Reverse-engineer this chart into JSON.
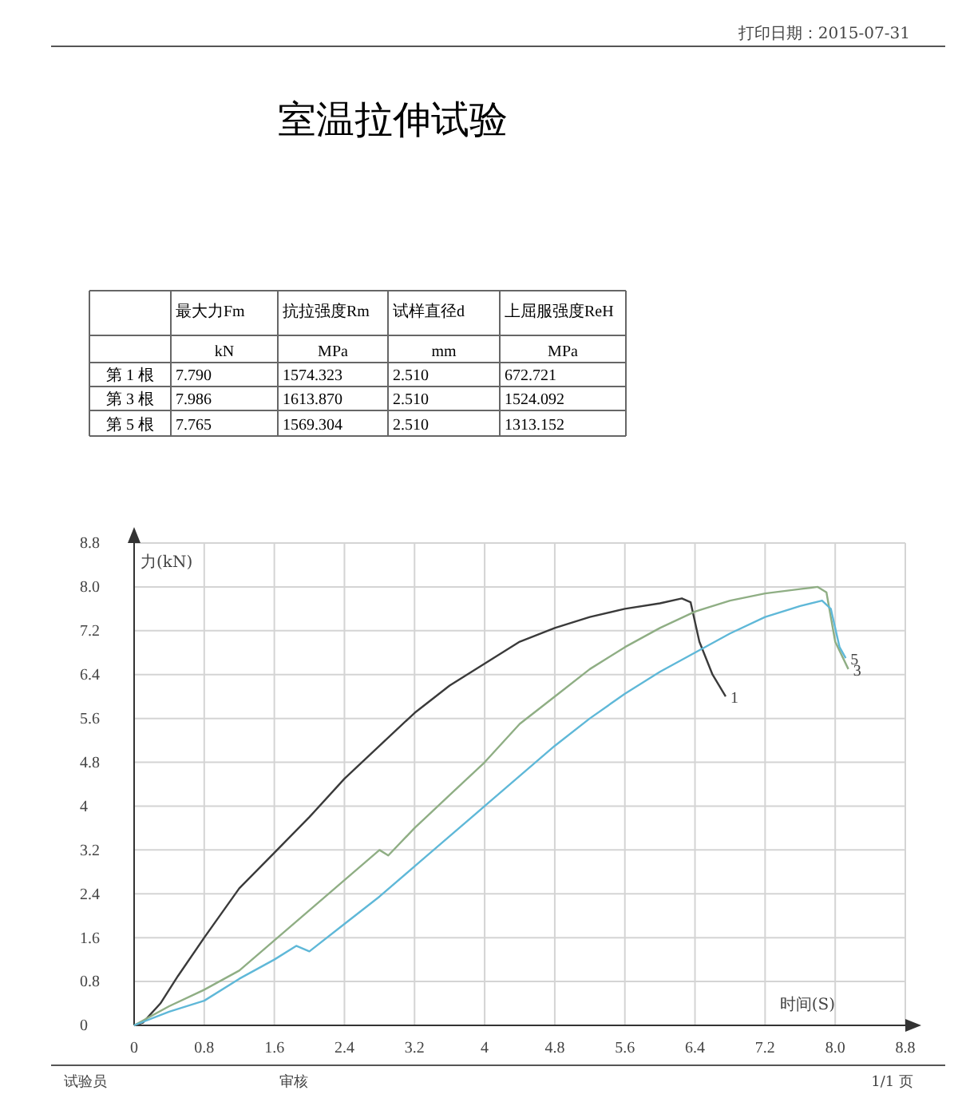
{
  "chart_data": {
    "type": "line",
    "title": "室温拉伸试验",
    "xlabel": "时间(S)",
    "ylabel": "力(kN)",
    "xlim": [
      0,
      8.8
    ],
    "ylim": [
      0,
      8.8
    ],
    "xticks": [
      0,
      0.8,
      1.6,
      2.4,
      3.2,
      4,
      4.8,
      5.6,
      6.4,
      7.2,
      {
        "value": 8,
        "label": "8.0"
      },
      8.8
    ],
    "yticks": [
      0,
      0.8,
      1.6,
      2.4,
      3.2,
      4,
      4.8,
      5.6,
      6.4,
      7.2,
      {
        "value": 8,
        "label": "8.0"
      },
      8.8
    ],
    "grid": true,
    "annotations": [
      "打印日期：2015-07-31",
      "最大力Fm",
      "抗拉强度Rm",
      "试样直径d",
      "上屈服强度ReH",
      "kN",
      "MPa",
      "mm",
      "MPa",
      "第 1 根",
      "7.790",
      "1574.323",
      "2.510",
      "672.721",
      "第 3 根",
      "7.986",
      "1613.870",
      "2.510",
      "1524.092",
      "第 5 根",
      "7.765",
      "1569.304",
      "2.510",
      "1313.152",
      "试验员",
      "审核",
      "1/1 页"
    ],
    "series": [
      {
        "name": "1",
        "color": "#3a3a3a",
        "x": [
          0,
          0.1,
          0.3,
          0.5,
          0.8,
          1.2,
          1.6,
          2.0,
          2.4,
          2.8,
          3.2,
          3.6,
          4.0,
          4.4,
          4.8,
          5.2,
          5.6,
          6.0,
          6.25,
          6.35,
          6.45,
          6.6,
          6.75
        ],
        "values": [
          0,
          0.05,
          0.4,
          0.9,
          1.6,
          2.5,
          3.15,
          3.8,
          4.5,
          5.1,
          5.7,
          6.2,
          6.6,
          7.0,
          7.25,
          7.45,
          7.6,
          7.7,
          7.79,
          7.72,
          7.0,
          6.4,
          6.0
        ]
      },
      {
        "name": "3",
        "color": "#8fae84",
        "x": [
          0,
          0.4,
          0.8,
          1.2,
          1.6,
          2.0,
          2.4,
          2.8,
          2.9,
          3.2,
          3.6,
          4.0,
          4.4,
          4.8,
          5.2,
          5.6,
          6.0,
          6.4,
          6.8,
          7.2,
          7.6,
          7.8,
          7.9,
          8.0,
          8.15
        ],
        "values": [
          0,
          0.35,
          0.65,
          1.0,
          1.55,
          2.1,
          2.65,
          3.2,
          3.1,
          3.6,
          4.2,
          4.8,
          5.5,
          6.0,
          6.5,
          6.9,
          7.25,
          7.55,
          7.75,
          7.88,
          7.96,
          8.0,
          7.9,
          7.0,
          6.5
        ]
      },
      {
        "name": "5",
        "color": "#5fb8d8",
        "x": [
          0,
          0.4,
          0.8,
          1.2,
          1.6,
          1.85,
          2.0,
          2.4,
          2.8,
          3.2,
          3.6,
          4.0,
          4.4,
          4.8,
          5.2,
          5.6,
          6.0,
          6.4,
          6.8,
          7.2,
          7.6,
          7.85,
          7.95,
          8.05,
          8.12
        ],
        "values": [
          0,
          0.25,
          0.45,
          0.85,
          1.2,
          1.45,
          1.35,
          1.85,
          2.35,
          2.9,
          3.45,
          4.0,
          4.55,
          5.1,
          5.6,
          6.05,
          6.45,
          6.8,
          7.15,
          7.45,
          7.65,
          7.75,
          7.6,
          6.9,
          6.7
        ]
      }
    ]
  }
}
